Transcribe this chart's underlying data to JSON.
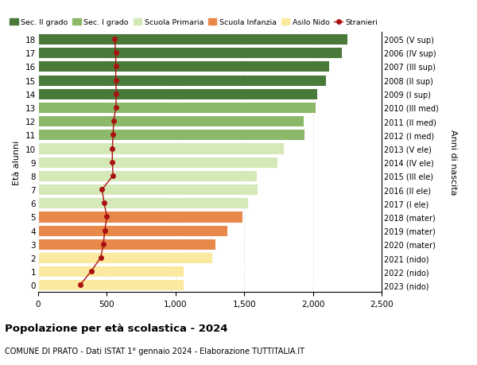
{
  "ages": [
    0,
    1,
    2,
    3,
    4,
    5,
    6,
    7,
    8,
    9,
    10,
    11,
    12,
    13,
    14,
    15,
    16,
    17,
    18
  ],
  "right_labels": [
    "2023 (nido)",
    "2022 (nido)",
    "2021 (nido)",
    "2020 (mater)",
    "2019 (mater)",
    "2018 (mater)",
    "2017 (I ele)",
    "2016 (II ele)",
    "2015 (III ele)",
    "2014 (IV ele)",
    "2013 (V ele)",
    "2012 (I med)",
    "2011 (II med)",
    "2010 (III med)",
    "2009 (I sup)",
    "2008 (II sup)",
    "2007 (III sup)",
    "2006 (IV sup)",
    "2005 (V sup)"
  ],
  "bar_values": [
    1060,
    1060,
    1270,
    1290,
    1380,
    1490,
    1530,
    1600,
    1590,
    1740,
    1790,
    1940,
    1930,
    2020,
    2030,
    2095,
    2120,
    2210,
    2250
  ],
  "stranieri_values": [
    305,
    385,
    455,
    475,
    485,
    500,
    480,
    465,
    545,
    540,
    540,
    545,
    550,
    565,
    570,
    565,
    565,
    565,
    555
  ],
  "bar_colors": [
    "#fce9a0",
    "#fce9a0",
    "#fce9a0",
    "#e8884a",
    "#e8884a",
    "#e8884a",
    "#d4e8b8",
    "#d4e8b8",
    "#d4e8b8",
    "#d4e8b8",
    "#d4e8b8",
    "#8cb86a",
    "#8cb86a",
    "#8cb86a",
    "#4a7a3a",
    "#4a7a3a",
    "#4a7a3a",
    "#4a7a3a",
    "#4a7a3a"
  ],
  "legend_labels": [
    "Sec. II grado",
    "Sec. I grado",
    "Scuola Primaria",
    "Scuola Infanzia",
    "Asilo Nido",
    "Stranieri"
  ],
  "legend_colors": [
    "#4a7a3a",
    "#8cb86a",
    "#d4e8b8",
    "#e8884a",
    "#fce9a0",
    "#aa1111"
  ],
  "title": "Popolazione per età scolastica - 2024",
  "subtitle": "COMUNE DI PRATO - Dati ISTAT 1° gennaio 2024 - Elaborazione TUTTITALIA.IT",
  "ylabel_left": "Età alunni",
  "ylabel_right": "Anni di nascita",
  "xlim": [
    0,
    2500
  ],
  "xticks": [
    0,
    500,
    1000,
    1500,
    2000,
    2500
  ],
  "bg_color": "#ffffff",
  "bar_edge_color": "#ffffff",
  "grid_color": "#cccccc",
  "stranieri_line_color": "#aa1111",
  "stranieri_marker_color": "#aa1111"
}
